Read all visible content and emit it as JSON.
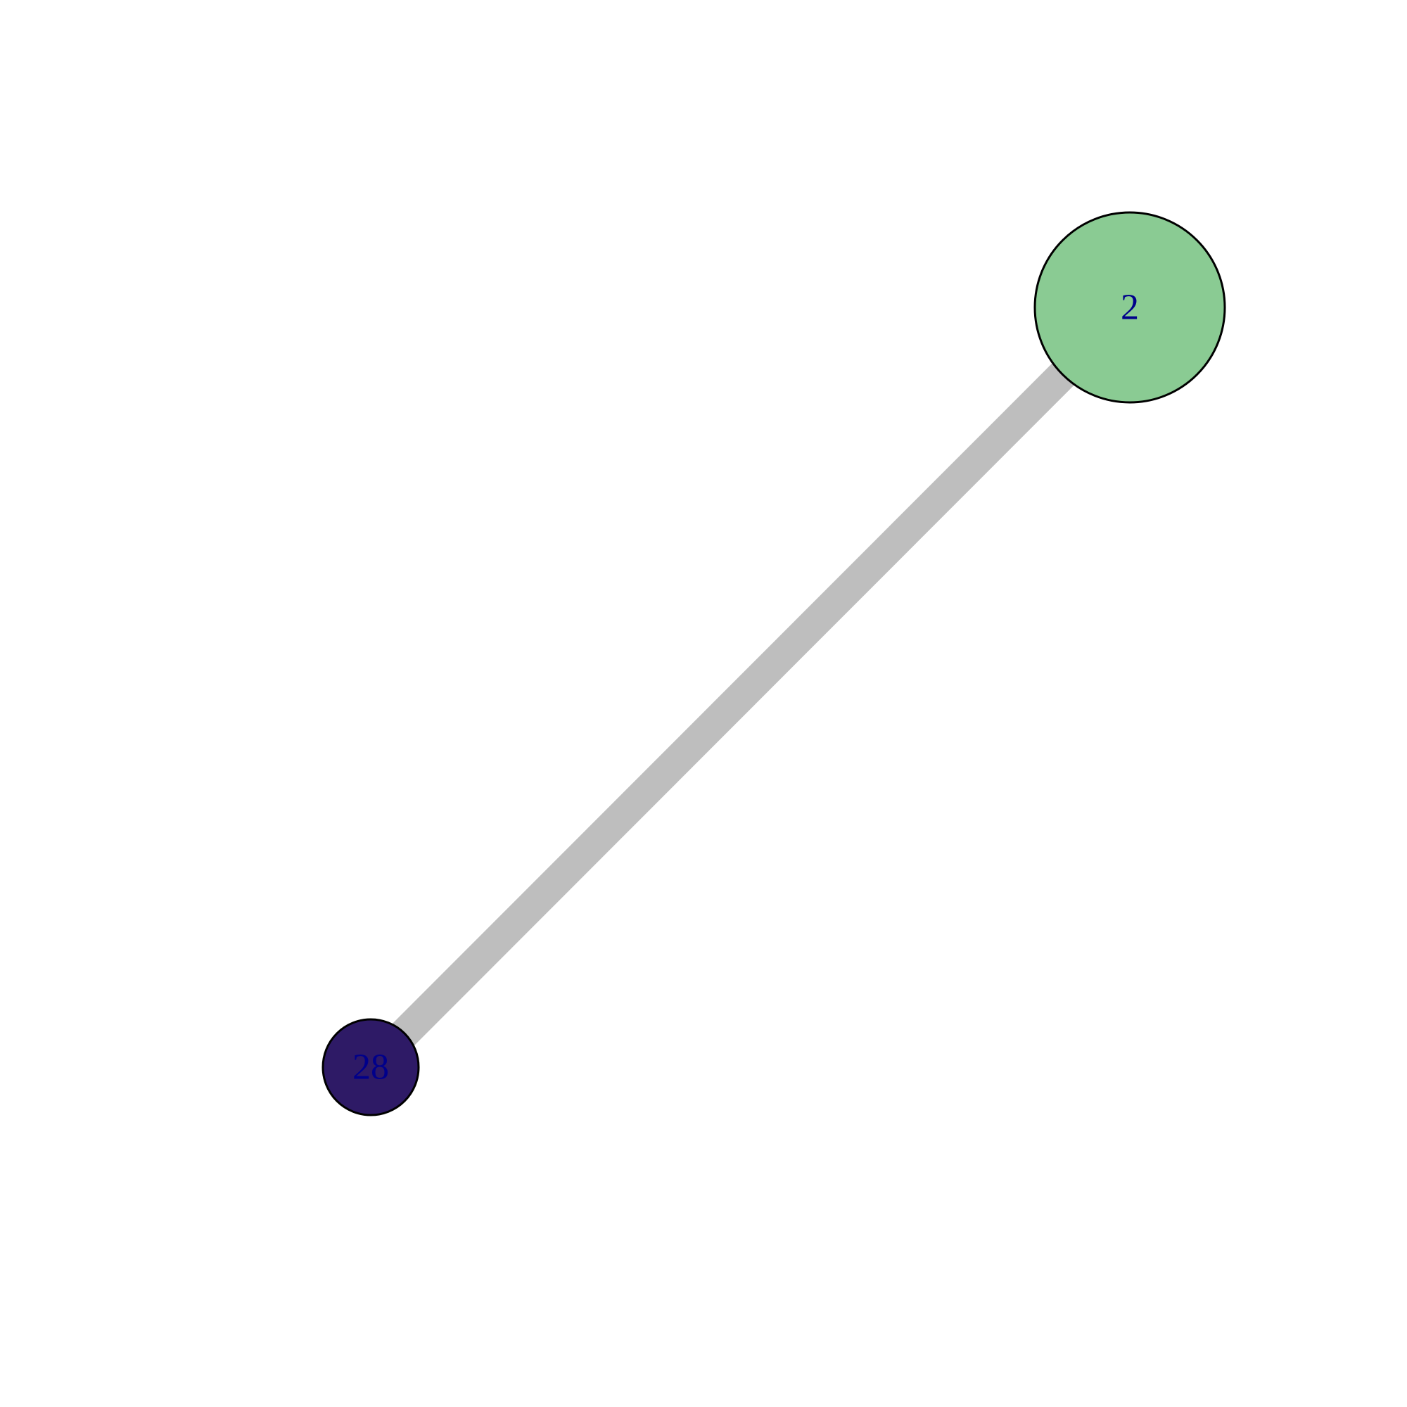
{
  "graph": {
    "nodes": [
      {
        "id": "2",
        "label": "2",
        "color": "#8acb93",
        "size": "large"
      },
      {
        "id": "28",
        "label": "28",
        "color": "#2e1a66",
        "size": "small"
      }
    ],
    "edges": [
      {
        "source": "2",
        "target": "28",
        "color": "#bebebe",
        "weight": "heavy"
      }
    ],
    "label_color": "#00008b",
    "node_border_color": "#000000"
  }
}
